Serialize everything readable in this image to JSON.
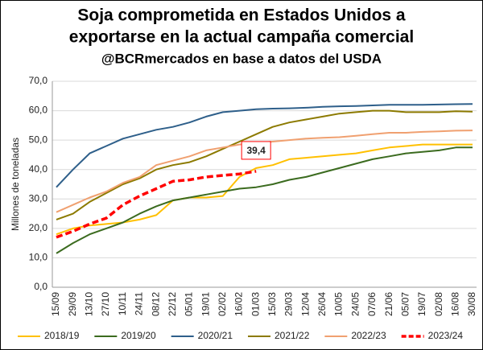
{
  "chart_data": {
    "type": "line",
    "title": [
      "Soja comprometida en Estados Unidos a",
      "exportarse en la actual campaña comercial"
    ],
    "subtitle": "@BCRmercados en base a datos del USDA",
    "y_label": "Millones de toneladas",
    "categories": [
      "15/09",
      "29/09",
      "13/10",
      "27/10",
      "10/11",
      "24/11",
      "08/12",
      "22/12",
      "05/01",
      "19/01",
      "02/02",
      "16/02",
      "01/03",
      "15/03",
      "29/03",
      "12/04",
      "26/04",
      "10/05",
      "24/05",
      "07/06",
      "21/06",
      "05/07",
      "19/07",
      "02/08",
      "16/08",
      "30/08"
    ],
    "ylim": [
      0,
      70
    ],
    "yticks": [
      {
        "value": 0,
        "label": "0,0"
      },
      {
        "value": 10,
        "label": "10,0"
      },
      {
        "value": 20,
        "label": "20,0"
      },
      {
        "value": 30,
        "label": "30,0"
      },
      {
        "value": 40,
        "label": "40,0"
      },
      {
        "value": 50,
        "label": "50,0"
      },
      {
        "value": 60,
        "label": "60,0"
      },
      {
        "value": 70,
        "label": "70,0"
      }
    ],
    "grid": true,
    "legend": "bottom",
    "series": [
      {
        "name": "2018/19",
        "color": "#ffc000",
        "values": [
          18,
          20,
          21,
          21.5,
          22,
          23,
          24.5,
          29.5,
          30.5,
          30.5,
          31,
          37.5,
          40.5,
          41.5,
          43.5,
          44,
          44.5,
          45,
          45.5,
          46.5,
          47.5,
          48,
          48.5,
          48.5,
          48.5,
          48.5
        ]
      },
      {
        "name": "2019/20",
        "color": "#3b6b1f",
        "values": [
          11.5,
          15,
          18,
          20,
          22,
          25,
          27.5,
          29.5,
          30.5,
          31.5,
          32.5,
          33.5,
          34,
          35,
          36.5,
          37.5,
          39,
          40.5,
          42,
          43.5,
          44.5,
          45.5,
          46,
          46.5,
          47.5,
          47.5
        ]
      },
      {
        "name": "2020/21",
        "color": "#2e5f8a",
        "values": [
          34,
          40,
          45.5,
          48,
          50.5,
          52,
          53.5,
          54.5,
          56,
          58,
          59.5,
          60,
          60.5,
          60.7,
          60.8,
          61,
          61.3,
          61.5,
          61.6,
          61.8,
          62,
          62,
          62,
          62.1,
          62.2,
          62.3
        ]
      },
      {
        "name": "2021/22",
        "color": "#8c7a00",
        "values": [
          23,
          25,
          29,
          32,
          35,
          37,
          40,
          41.5,
          42.5,
          44.5,
          47,
          49.5,
          52,
          54.5,
          56,
          57,
          58,
          59,
          59.5,
          60,
          60,
          59.5,
          59.5,
          59.5,
          59.8,
          59.7
        ]
      },
      {
        "name": "2022/23",
        "color": "#f0a070",
        "values": [
          25.5,
          28,
          30.5,
          32.5,
          35.5,
          37.5,
          41.5,
          43,
          44.5,
          46.5,
          47.5,
          48.5,
          49,
          49.5,
          50,
          50.5,
          50.8,
          51,
          51.5,
          52,
          52.5,
          52.5,
          52.8,
          53,
          53.2,
          53.3
        ]
      },
      {
        "name": "2023/24",
        "color": "#ff0000",
        "dashed": true,
        "values": [
          17,
          19,
          21.5,
          23.5,
          28,
          31,
          33.5,
          36,
          36.5,
          37.5,
          38,
          38.5,
          39.4,
          null,
          null,
          null,
          null,
          null,
          null,
          null,
          null,
          null,
          null,
          null,
          null,
          null
        ],
        "value_labels": [
          null,
          null,
          null,
          null,
          null,
          null,
          null,
          null,
          null,
          null,
          null,
          null,
          "39,4",
          null,
          null,
          null,
          null,
          null,
          null,
          null,
          null,
          null,
          null,
          null,
          null,
          null
        ]
      }
    ]
  }
}
